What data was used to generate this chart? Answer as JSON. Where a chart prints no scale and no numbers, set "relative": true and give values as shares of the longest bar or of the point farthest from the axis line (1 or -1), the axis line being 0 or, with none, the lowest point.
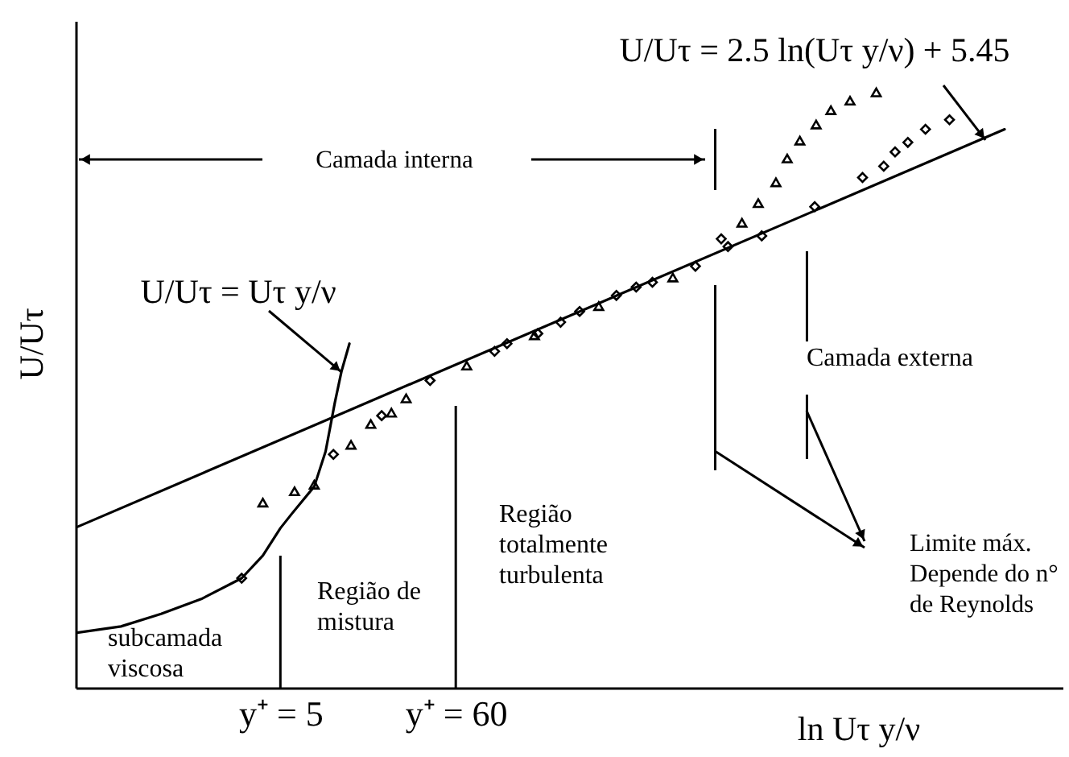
{
  "chart_data": {
    "type": "scatter",
    "xlabel": "ln Uτ y/ν",
    "ylabel": "U/Uτ",
    "relative": true,
    "log": "x",
    "xlim": [
      0.275,
      325000
    ],
    "xticks": [
      {
        "value": 5,
        "label": "y⁺ = 5"
      },
      {
        "value": 60,
        "label": "y⁺ = 60"
      }
    ],
    "series": [
      {
        "type": "line",
        "color": "#000000",
        "x": [
          0.275,
          143000
        ],
        "values": [
          0.269,
          0.938
        ]
      },
      {
        "type": "line",
        "color": "#000000",
        "x": [
          0.275,
          0.522,
          0.923,
          1.63,
          2.89,
          3.9,
          5.0,
          5.87,
          8.08,
          9.49,
          10.8,
          11.9,
          13.3
        ],
        "values": [
          0.092,
          0.103,
          0.124,
          0.149,
          0.184,
          0.222,
          0.268,
          0.292,
          0.338,
          0.397,
          0.478,
          0.532,
          0.578
        ]
      },
      {
        "marker": "triangle",
        "color": "#000000",
        "x": [
          3.9,
          6.11,
          8.08,
          13.6,
          18.0,
          24.1,
          29.7,
          70.1,
          183,
          455,
          1300,
          3460,
          4360,
          5600,
          6570,
          7860,
          9900,
          12200,
          16000,
          23200
        ],
        "values": [
          0.311,
          0.33,
          0.341,
          0.408,
          0.443,
          0.462,
          0.486,
          0.541,
          0.592,
          0.641,
          0.689,
          0.781,
          0.814,
          0.849,
          0.889,
          0.919,
          0.946,
          0.97,
          0.986,
          1.0
        ]
      },
      {
        "marker": "diamond",
        "color": "#000000",
        "x": [
          2.89,
          10.6,
          21.0,
          41.7,
          104,
          124,
          192,
          265,
          347,
          584,
          773,
          973,
          1790,
          2580,
          2840,
          4580,
          9700,
          19100,
          25800,
          30300,
          36300,
          46600,
          65500
        ],
        "values": [
          0.184,
          0.392,
          0.457,
          0.516,
          0.565,
          0.578,
          0.595,
          0.614,
          0.632,
          0.659,
          0.673,
          0.681,
          0.708,
          0.754,
          0.741,
          0.759,
          0.808,
          0.857,
          0.876,
          0.9,
          0.916,
          0.938,
          0.954
        ]
      }
    ],
    "ref_lines": [
      {
        "axis": "x",
        "value": 5
      },
      {
        "axis": "x",
        "value": 60
      },
      {
        "axis": "x",
        "value": 2370
      },
      {
        "axis": "x",
        "value": 8690
      }
    ],
    "annotations": [
      {
        "text": "U/Uτ = 2.5 ln(Uτ y/ν) + 5.45",
        "x": 109000,
        "y": 0.92
      },
      "Camada interna",
      {
        "text": "U/Uτ = Uτ y/ν",
        "x": 11.9,
        "y": 0.53
      },
      "Camada externa",
      "Região de\nmistura",
      "Região\ntotalmente\nturbulenta",
      "Limite máx.\nDepende do n°\nde Reynolds",
      "subcamada\nviscosa"
    ]
  }
}
